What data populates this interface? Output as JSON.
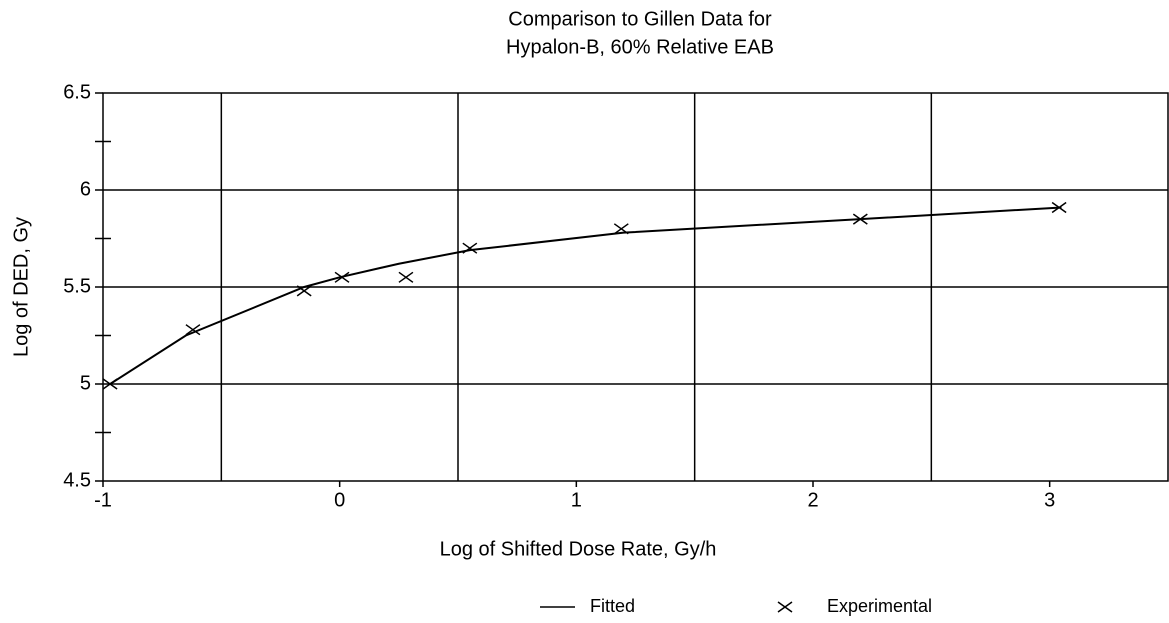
{
  "chart_data": {
    "type": "line",
    "title": [
      "Comparison to Gillen Data for",
      "Hypalon-B, 60% Relative EAB"
    ],
    "x_label": "Log of Shifted Dose Rate, Gy/h",
    "y_label": "Log of DED, Gy",
    "xlim": [
      -1,
      3.5
    ],
    "xticks": [
      -1,
      0,
      1,
      2,
      3
    ],
    "x_gridlines": [
      -0.5,
      0.5,
      1.5,
      2.5
    ],
    "ylim": [
      4.5,
      6.5
    ],
    "yticks": [
      4.5,
      5,
      5.5,
      6,
      6.5
    ],
    "y_gridlines": [
      5,
      5.5,
      6
    ],
    "y_minor_ticks": [
      4.75,
      5.25,
      5.75,
      6.25
    ],
    "series": [
      {
        "name": "Fitted",
        "color": "#000000",
        "style": "line",
        "x": [
          -0.97,
          -0.65,
          -0.15,
          0,
          0.25,
          0.55,
          1.2,
          2.2,
          3.05
        ],
        "values": [
          5.0,
          5.25,
          5.5,
          5.55,
          5.62,
          5.69,
          5.78,
          5.85,
          5.91
        ]
      },
      {
        "name": "Experimental",
        "color": "#000000",
        "style": "cross",
        "x": [
          -0.97,
          -0.62,
          -0.15,
          0.01,
          0.28,
          0.55,
          1.19,
          2.2,
          3.04
        ],
        "values": [
          5.0,
          5.28,
          5.48,
          5.55,
          5.55,
          5.7,
          5.8,
          5.85,
          5.91
        ]
      }
    ]
  }
}
